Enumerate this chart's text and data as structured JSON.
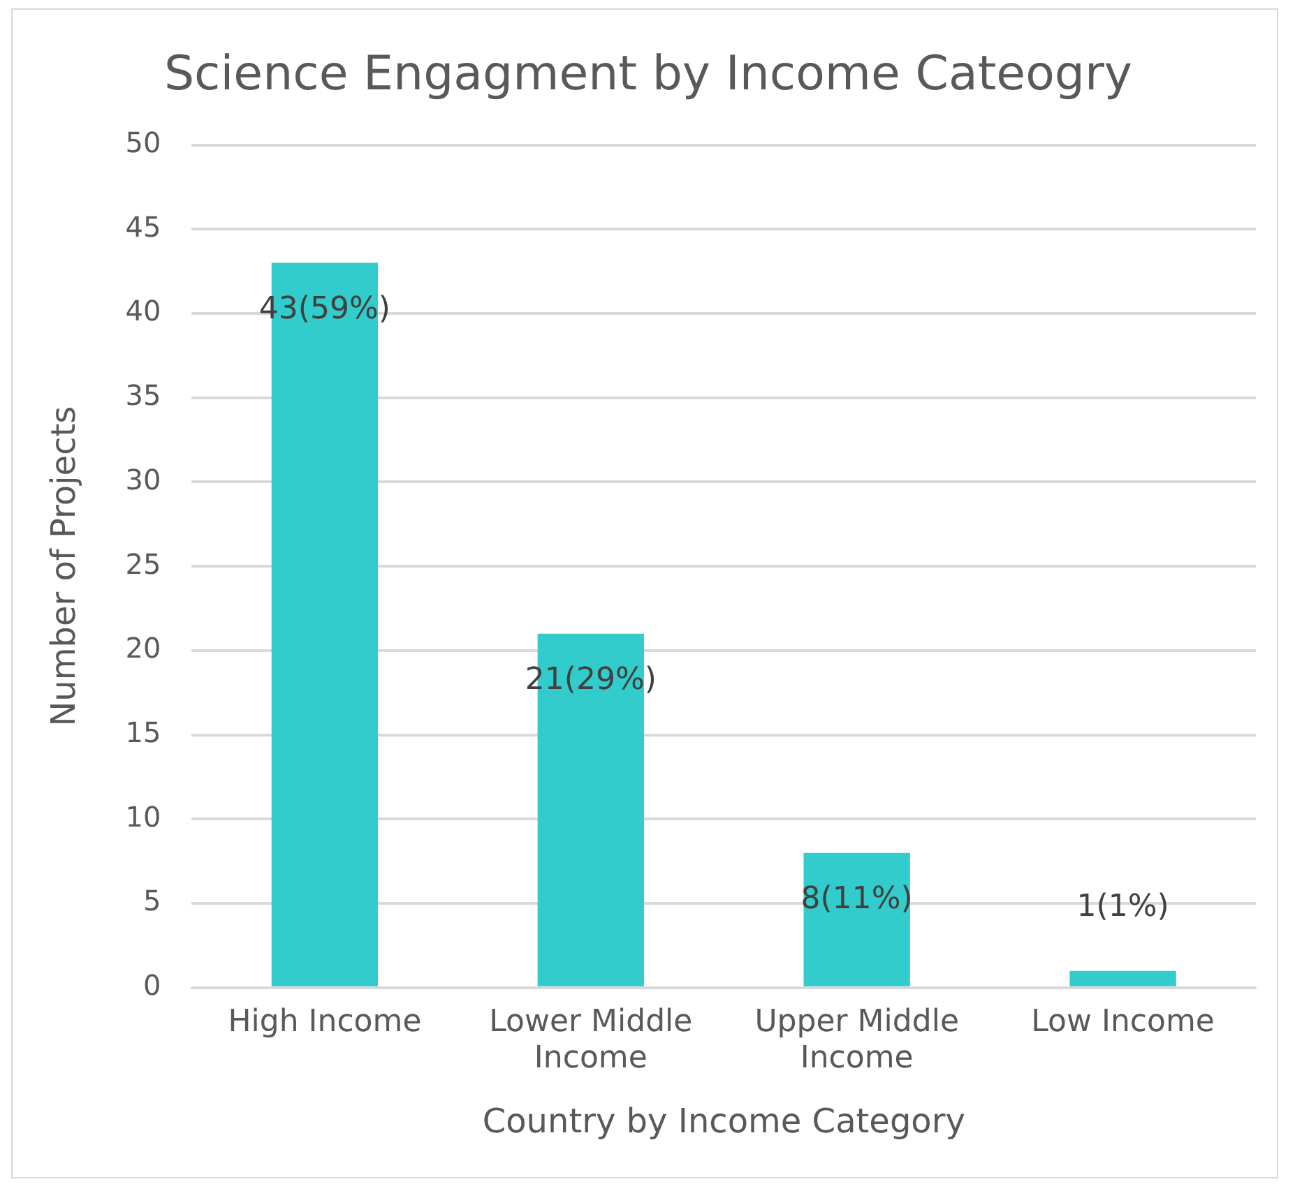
{
  "chart_data": {
    "type": "bar",
    "title": "Science Engagment by Income Cateogry",
    "xlabel": "Country by Income Category",
    "ylabel": "Number of Projects",
    "categories": [
      "High Income",
      "Lower Middle Income",
      "Upper Middle Income",
      "Low Income"
    ],
    "values": [
      43,
      21,
      8,
      1
    ],
    "color": "#33cccc",
    "value_labels": [
      "43(59%)",
      "21(29%)",
      "8(11%)",
      "1(1%)"
    ],
    "ylim": [
      0,
      50
    ],
    "yticks": [
      0,
      5,
      10,
      15,
      20,
      25,
      30,
      35,
      40,
      45,
      50
    ],
    "grid": "y",
    "legend": false
  }
}
